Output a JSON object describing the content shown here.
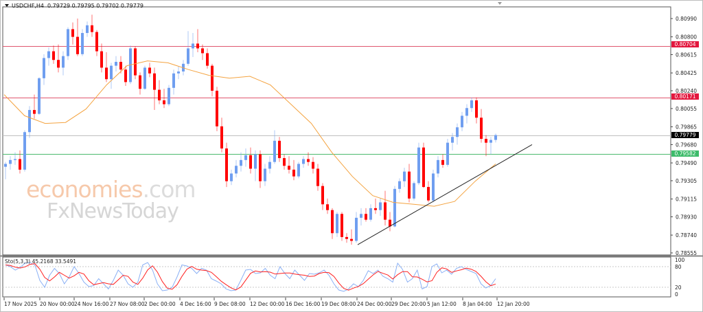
{
  "header": {
    "symbol": "USDCHF,H4",
    "ohlc": "0.79729 0.79795 0.79702 0.79779"
  },
  "watermark": {
    "line1_main": "economies",
    "line1_suffix": ".com",
    "line2": "FxNewsToday"
  },
  "stochastic": {
    "label": "Sto(5,3,3) 45.2168 33.5491",
    "levels": [
      "100",
      "80",
      "20",
      "0"
    ]
  },
  "price_tags": {
    "resistance_1": "0.80704",
    "resistance_2": "0.80171",
    "current": "0.79779",
    "support": "0.79582"
  },
  "colors": {
    "bull": "#6f9ef0",
    "bear": "#ff0000",
    "ma": "#f4a340",
    "resistance_line": "#e0566e",
    "support_line": "#4cba6e",
    "current_line": "#c0c0c0",
    "trendline": "#222222",
    "stoch_main": "#8ab0f5",
    "stoch_signal": "#ff2020",
    "tag_red": "#e3173e",
    "tag_green": "#3dbb6a",
    "tag_black": "#000000"
  },
  "chart_data": {
    "type": "candlestick",
    "title": "USDCHF,H4",
    "subtitle": "O 0.79729 H 0.79795 L 0.79702 C 0.79779",
    "xlabel": "",
    "ylabel": "",
    "ylim": [
      0.78555,
      0.811
    ],
    "y_ticks": [
      "0.80990",
      "0.80800",
      "0.80615",
      "0.80425",
      "0.80240",
      "0.80055",
      "0.79865",
      "0.79680",
      "0.79490",
      "0.79305",
      "0.79115",
      "0.78930",
      "0.78740",
      "0.78555"
    ],
    "x_ticks": [
      "17 Nov 2025",
      "20 Nov 00:00",
      "24 Nov 16:00",
      "27 Nov 08:00",
      "2 Dec 00:00",
      "4 Dec 16:00",
      "9 Dec 08:00",
      "12 Dec 00:00",
      "16 Dec 16:00",
      "19 Dec 08:00",
      "24 Dec 00:00",
      "29 Dec 20:00",
      "5 Jan 12:00",
      "8 Jan 04:00",
      "12 Jan 20:00"
    ],
    "horizontal_levels": [
      {
        "name": "resistance_1",
        "value": 0.80704,
        "color": "red"
      },
      {
        "name": "resistance_2",
        "value": 0.80171,
        "color": "red"
      },
      {
        "name": "current_price",
        "value": 0.79779,
        "color": "gray"
      },
      {
        "name": "support",
        "value": 0.79582,
        "color": "green"
      }
    ],
    "trendline": {
      "from": {
        "x_label": "24 Dec 00:00",
        "value": 0.7864
      },
      "to": {
        "x_label": "after 12 Jan 20:00",
        "value": 0.7968
      }
    },
    "moving_average": {
      "color": "orange",
      "points": [
        [
          0.802
        ],
        [
          0.7998
        ],
        [
          0.799
        ],
        [
          0.7991
        ],
        [
          0.8005
        ],
        [
          0.803
        ],
        [
          0.805
        ],
        [
          0.8055
        ],
        [
          0.8053
        ],
        [
          0.8046
        ],
        [
          0.804
        ],
        [
          0.8037
        ],
        [
          0.8039
        ],
        [
          0.803
        ],
        [
          0.801
        ],
        [
          0.799
        ],
        [
          0.796
        ],
        [
          0.7935
        ],
        [
          0.7915
        ],
        [
          0.7908
        ],
        [
          0.7906
        ],
        [
          0.7904
        ],
        [
          0.7909
        ],
        [
          0.793
        ],
        [
          0.7948
        ]
      ]
    },
    "ohlc_summary": {
      "high_region": "~0.81030 around 24 Nov",
      "low_region": "~0.78640 around 24 Dec",
      "last_close": 0.79779
    },
    "candles": [
      [
        0.7945,
        0.795,
        0.7932,
        0.7948
      ],
      [
        0.7948,
        0.7956,
        0.7942,
        0.7952
      ],
      [
        0.7952,
        0.796,
        0.7947,
        0.7953
      ],
      [
        0.7953,
        0.7962,
        0.7938,
        0.7942
      ],
      [
        0.7942,
        0.7983,
        0.794,
        0.7981
      ],
      [
        0.7981,
        0.8008,
        0.7975,
        0.8004
      ],
      [
        0.8004,
        0.802,
        0.7995,
        0.8
      ],
      [
        0.8,
        0.8038,
        0.7999,
        0.8037
      ],
      [
        0.8037,
        0.8062,
        0.803,
        0.8058
      ],
      [
        0.8058,
        0.8069,
        0.805,
        0.8065
      ],
      [
        0.8065,
        0.8071,
        0.8052,
        0.8056
      ],
      [
        0.8056,
        0.8072,
        0.8043,
        0.8048
      ],
      [
        0.8048,
        0.8065,
        0.804,
        0.806
      ],
      [
        0.806,
        0.809,
        0.8056,
        0.8088
      ],
      [
        0.8088,
        0.8095,
        0.8072,
        0.808
      ],
      [
        0.808,
        0.8099,
        0.806,
        0.8062
      ],
      [
        0.8062,
        0.8088,
        0.806,
        0.8084
      ],
      [
        0.8084,
        0.8096,
        0.808,
        0.8092
      ],
      [
        0.8092,
        0.8103,
        0.808,
        0.8085
      ],
      [
        0.8085,
        0.8087,
        0.806,
        0.8065
      ],
      [
        0.8065,
        0.8073,
        0.8043,
        0.8048
      ],
      [
        0.8048,
        0.8064,
        0.8033,
        0.8036
      ],
      [
        0.8036,
        0.8053,
        0.8026,
        0.805
      ],
      [
        0.805,
        0.806,
        0.8044,
        0.8054
      ],
      [
        0.8054,
        0.806,
        0.8042,
        0.8046
      ],
      [
        0.8046,
        0.805,
        0.8029,
        0.8033
      ],
      [
        0.8033,
        0.8071,
        0.8031,
        0.8068
      ],
      [
        0.8068,
        0.807,
        0.8036,
        0.804
      ],
      [
        0.804,
        0.8043,
        0.802,
        0.8026
      ],
      [
        0.8026,
        0.805,
        0.8025,
        0.8048
      ],
      [
        0.8048,
        0.8053,
        0.8038,
        0.8042
      ],
      [
        0.8042,
        0.8048,
        0.8004,
        0.8025
      ],
      [
        0.8025,
        0.8035,
        0.801,
        0.8014
      ],
      [
        0.8014,
        0.8026,
        0.8006,
        0.801
      ],
      [
        0.801,
        0.803,
        0.8008,
        0.8027
      ],
      [
        0.8027,
        0.8046,
        0.802,
        0.8042
      ],
      [
        0.8042,
        0.8049,
        0.8036,
        0.8044
      ],
      [
        0.8044,
        0.8056,
        0.804,
        0.8052
      ],
      [
        0.8052,
        0.8086,
        0.805,
        0.8068
      ],
      [
        0.8068,
        0.8084,
        0.8059,
        0.8073
      ],
      [
        0.8073,
        0.8088,
        0.8064,
        0.8068
      ],
      [
        0.8068,
        0.8072,
        0.8056,
        0.8063
      ],
      [
        0.8063,
        0.8068,
        0.8047,
        0.805
      ],
      [
        0.805,
        0.8052,
        0.8018,
        0.8024
      ],
      [
        0.8024,
        0.8028,
        0.7982,
        0.7987
      ],
      [
        0.7987,
        0.7996,
        0.796,
        0.7964
      ],
      [
        0.7964,
        0.797,
        0.7924,
        0.793
      ],
      [
        0.793,
        0.7942,
        0.7926,
        0.7938
      ],
      [
        0.7938,
        0.7952,
        0.7934,
        0.7946
      ],
      [
        0.7946,
        0.796,
        0.794,
        0.7952
      ],
      [
        0.7952,
        0.7964,
        0.7945,
        0.7957
      ],
      [
        0.7957,
        0.7965,
        0.7938,
        0.7943
      ],
      [
        0.7943,
        0.7962,
        0.793,
        0.7958
      ],
      [
        0.7958,
        0.7962,
        0.7923,
        0.793
      ],
      [
        0.793,
        0.7948,
        0.7925,
        0.7943
      ],
      [
        0.7943,
        0.7956,
        0.7938,
        0.795
      ],
      [
        0.795,
        0.7983,
        0.7948,
        0.7972
      ],
      [
        0.7972,
        0.7976,
        0.795,
        0.7954
      ],
      [
        0.7954,
        0.7958,
        0.7942,
        0.7946
      ],
      [
        0.7946,
        0.7956,
        0.7938,
        0.7942
      ],
      [
        0.7942,
        0.7952,
        0.7931,
        0.7935
      ],
      [
        0.7935,
        0.795,
        0.7933,
        0.7948
      ],
      [
        0.7948,
        0.7956,
        0.7944,
        0.7953
      ],
      [
        0.7953,
        0.796,
        0.7946,
        0.795
      ],
      [
        0.795,
        0.7955,
        0.7938,
        0.7943
      ],
      [
        0.7943,
        0.7948,
        0.792,
        0.7925
      ],
      [
        0.7925,
        0.7928,
        0.79,
        0.7906
      ],
      [
        0.7906,
        0.7912,
        0.7896,
        0.79
      ],
      [
        0.79,
        0.7902,
        0.787,
        0.7876
      ],
      [
        0.7876,
        0.7898,
        0.7872,
        0.7896
      ],
      [
        0.7896,
        0.7898,
        0.7868,
        0.7872
      ],
      [
        0.7872,
        0.7876,
        0.7866,
        0.787
      ],
      [
        0.787,
        0.788,
        0.7864,
        0.7868
      ],
      [
        0.7868,
        0.7898,
        0.7866,
        0.7892
      ],
      [
        0.7892,
        0.7902,
        0.7884,
        0.7896
      ],
      [
        0.7896,
        0.7902,
        0.7888,
        0.789
      ],
      [
        0.789,
        0.7906,
        0.7888,
        0.7902
      ],
      [
        0.7902,
        0.7912,
        0.7896,
        0.79
      ],
      [
        0.79,
        0.7912,
        0.7894,
        0.7908
      ],
      [
        0.7908,
        0.792,
        0.7884,
        0.789
      ],
      [
        0.789,
        0.7898,
        0.7878,
        0.7883
      ],
      [
        0.7883,
        0.7925,
        0.7882,
        0.7922
      ],
      [
        0.7922,
        0.7933,
        0.7918,
        0.793
      ],
      [
        0.793,
        0.7944,
        0.7924,
        0.794
      ],
      [
        0.794,
        0.7948,
        0.7908,
        0.7912
      ],
      [
        0.7912,
        0.793,
        0.791,
        0.7928
      ],
      [
        0.7928,
        0.797,
        0.7926,
        0.7965
      ],
      [
        0.7965,
        0.797,
        0.7923,
        0.7924
      ],
      [
        0.7924,
        0.793,
        0.7908,
        0.791
      ],
      [
        0.791,
        0.7942,
        0.7908,
        0.7938
      ],
      [
        0.7938,
        0.7956,
        0.7934,
        0.7952
      ],
      [
        0.7952,
        0.7958,
        0.7944,
        0.7947
      ],
      [
        0.7947,
        0.7974,
        0.7945,
        0.797
      ],
      [
        0.797,
        0.798,
        0.7962,
        0.7976
      ],
      [
        0.7976,
        0.799,
        0.7968,
        0.7986
      ],
      [
        0.7986,
        0.8002,
        0.7982,
        0.7998
      ],
      [
        0.7998,
        0.801,
        0.799,
        0.8006
      ],
      [
        0.8006,
        0.80171,
        0.8002,
        0.8014
      ],
      [
        0.8014,
        0.80171,
        0.799,
        0.7996
      ],
      [
        0.7996,
        0.8005,
        0.797,
        0.7974
      ],
      [
        0.7974,
        0.7978,
        0.7956,
        0.797
      ],
      [
        0.797,
        0.7976,
        0.7958,
        0.79729
      ],
      [
        0.79729,
        0.79795,
        0.79702,
        0.79779
      ]
    ]
  }
}
